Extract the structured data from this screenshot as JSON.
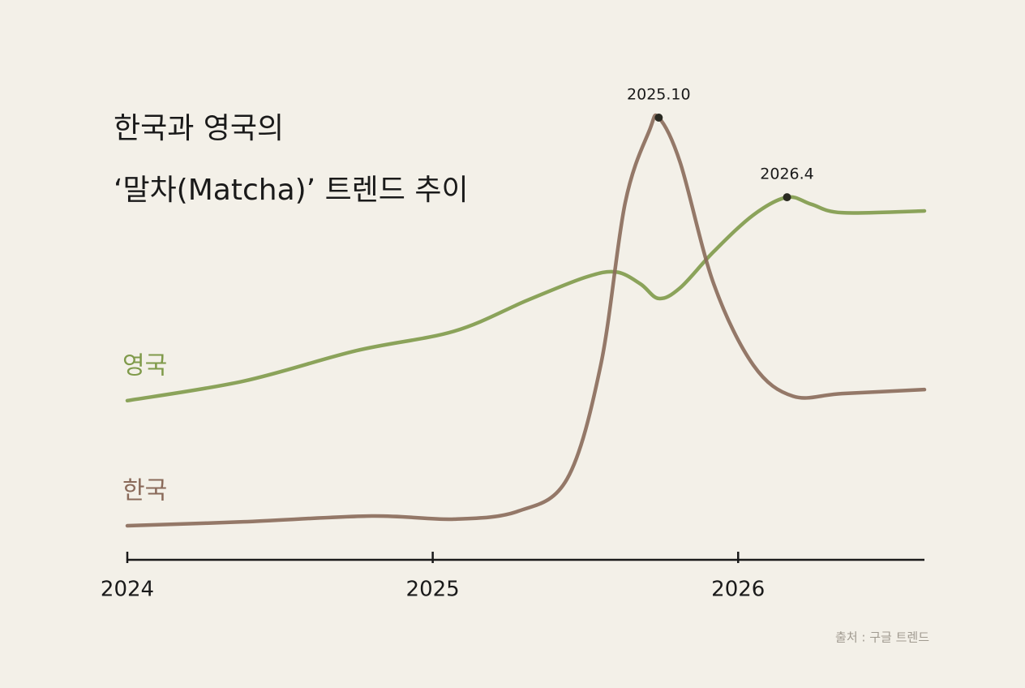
{
  "chart_data": {
    "type": "line",
    "title": [
      "한국과 영국의",
      "‘말차(Matcha)’ 트렌드 추이"
    ],
    "series": [
      {
        "name": "영국",
        "color": "#7f9a4a",
        "x": [
          2024.0,
          2024.38,
          2024.75,
          2025.07,
          2025.31,
          2025.5,
          2025.6,
          2025.68,
          2025.74,
          2025.81,
          2025.92,
          2026.05,
          2026.16,
          2026.24,
          2026.34,
          2026.61
        ],
        "values": [
          36,
          40.4,
          47.3,
          51.7,
          58.7,
          63.9,
          65.1,
          62.4,
          59.1,
          61.5,
          69.7,
          78,
          82,
          80.4,
          78.5,
          78.9
        ]
      },
      {
        "name": "한국",
        "color": "#8a6a5a",
        "x": [
          2024.0,
          2024.38,
          2024.8,
          2025.07,
          2025.28,
          2025.44,
          2025.55,
          2025.63,
          2025.71,
          2025.74,
          2025.81,
          2025.92,
          2026.05,
          2026.18,
          2026.34,
          2026.61
        ],
        "values": [
          7.7,
          8.6,
          9.9,
          9.2,
          11,
          18.3,
          44,
          80.7,
          97.2,
          100,
          89.9,
          62.4,
          44,
          37,
          37.6,
          38.5
        ]
      }
    ],
    "annotations": [
      {
        "text": "2025.10",
        "x": 2025.74,
        "y": 100
      },
      {
        "text": "2026.4",
        "x": 2026.16,
        "y": 82
      }
    ],
    "xlim": [
      2024,
      2026.61
    ],
    "xticks": [
      2024,
      2025,
      2026
    ],
    "ylim": [
      0,
      100
    ],
    "source": "출처 : 구글 트렌드"
  }
}
